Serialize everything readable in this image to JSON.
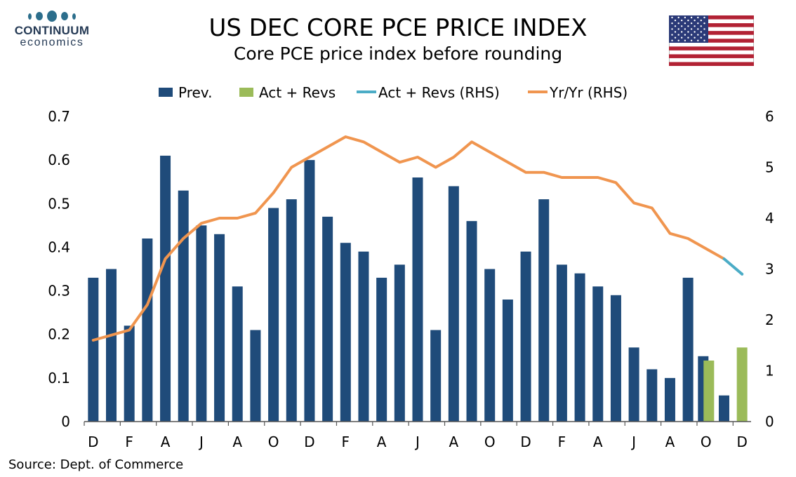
{
  "logo": {
    "name_line1": "CONTINUUM",
    "name_line2": "economics"
  },
  "header": {
    "title": "US DEC CORE PCE PRICE INDEX",
    "subtitle": "Core PCE price index before rounding"
  },
  "footer": {
    "source": "Source: Dept. of Commerce"
  },
  "flag": {
    "name": "us-flag-icon"
  },
  "colors": {
    "prev": "#1f4b7a",
    "act": "#9bbb59",
    "act_line": "#4bacc6",
    "yoy": "#f0954f"
  },
  "chart_data": {
    "type": "bar",
    "legend_position": "top",
    "grid": false,
    "ylim": [
      0,
      0.7
    ],
    "y_ticks": [
      "0",
      "0.1",
      "0.2",
      "0.3",
      "0.4",
      "0.5",
      "0.6",
      "0.7"
    ],
    "y2lim": [
      0,
      6
    ],
    "y2_ticks": [
      "0",
      "1",
      "2",
      "3",
      "4",
      "5",
      "6"
    ],
    "x_tick_labels": [
      "D",
      "F",
      "A",
      "J",
      "A",
      "O",
      "D",
      "F",
      "A",
      "J",
      "A",
      "O",
      "D",
      "F",
      "A",
      "J",
      "A",
      "O",
      "D"
    ],
    "legend": [
      {
        "label": "Prev.",
        "kind": "bar",
        "series": "prev"
      },
      {
        "label": "Act + Revs",
        "kind": "bar",
        "series": "act"
      },
      {
        "label": "Act + Revs (RHS)",
        "kind": "line",
        "series": "act_line"
      },
      {
        "label": "Yr/Yr (RHS)",
        "kind": "line",
        "series": "yoy"
      }
    ],
    "series": [
      {
        "name": "Prev.",
        "axis": "left",
        "values": [
          0.33,
          0.35,
          0.22,
          0.42,
          0.61,
          0.53,
          0.45,
          0.43,
          0.31,
          0.21,
          0.49,
          0.51,
          0.6,
          0.47,
          0.41,
          0.39,
          0.33,
          0.36,
          0.56,
          0.21,
          0.54,
          0.46,
          0.35,
          0.28,
          0.39,
          0.51,
          0.36,
          0.34,
          0.31,
          0.29,
          0.17,
          0.12,
          0.1,
          0.33,
          0.15,
          0.06,
          null
        ]
      },
      {
        "name": "Act + Revs",
        "axis": "left",
        "values": [
          null,
          null,
          null,
          null,
          null,
          null,
          null,
          null,
          null,
          null,
          null,
          null,
          null,
          null,
          null,
          null,
          null,
          null,
          null,
          null,
          null,
          null,
          null,
          null,
          null,
          null,
          null,
          null,
          null,
          null,
          null,
          null,
          null,
          null,
          0.14,
          null,
          0.17
        ]
      },
      {
        "name": "Act + Revs (RHS)",
        "axis": "right",
        "values": [
          null,
          null,
          null,
          null,
          null,
          null,
          null,
          null,
          null,
          null,
          null,
          null,
          null,
          null,
          null,
          null,
          null,
          null,
          null,
          null,
          null,
          null,
          null,
          null,
          null,
          null,
          null,
          null,
          null,
          null,
          null,
          null,
          null,
          null,
          null,
          3.2,
          2.9
        ]
      },
      {
        "name": "Yr/Yr (RHS)",
        "axis": "right",
        "values": [
          1.6,
          1.7,
          1.8,
          2.3,
          3.2,
          3.6,
          3.9,
          4.0,
          4.0,
          4.1,
          4.5,
          5.0,
          5.2,
          5.4,
          5.6,
          5.5,
          5.3,
          5.1,
          5.2,
          5.0,
          5.2,
          5.5,
          5.3,
          5.1,
          4.9,
          4.9,
          4.8,
          4.8,
          4.8,
          4.7,
          4.3,
          4.2,
          3.7,
          3.6,
          3.4,
          3.2,
          null
        ]
      }
    ]
  }
}
